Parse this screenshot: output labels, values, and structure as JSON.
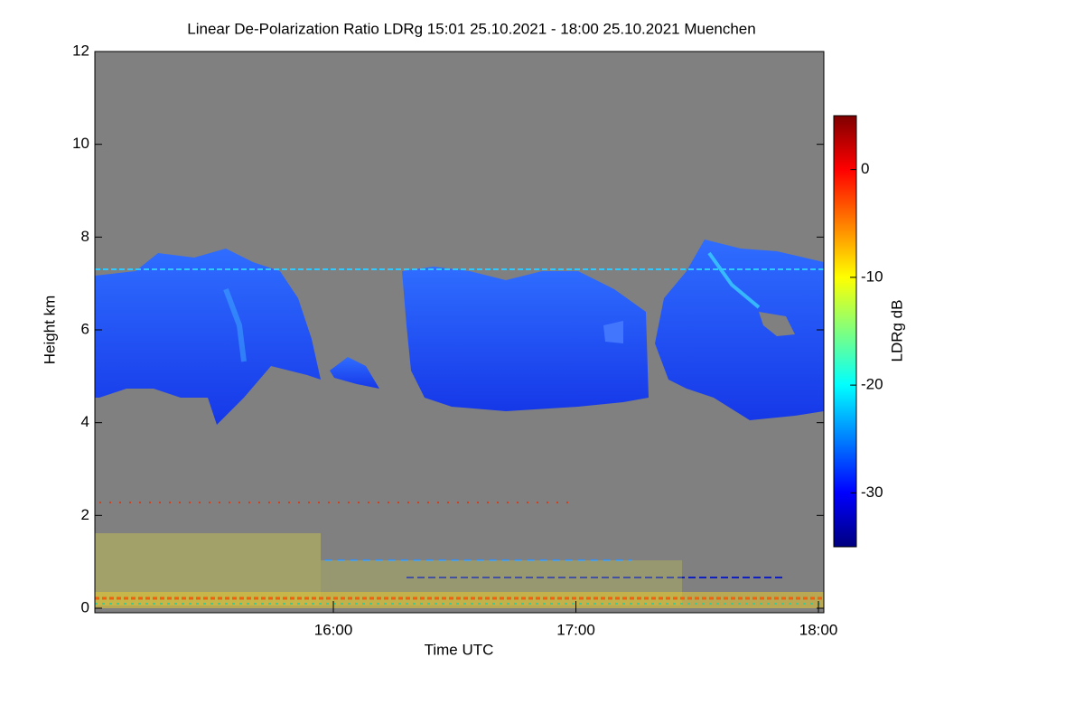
{
  "chart_data": {
    "type": "heatmap",
    "title": "Linear De-Polarization Ratio LDRg   15:01 25.10.2021 - 18:00 25.10.2021 Muenchen",
    "xlabel": "Time UTC",
    "ylabel": "Height km",
    "xlim": [
      15.0167,
      18.0222
    ],
    "xticks": [
      {
        "value": 16,
        "label": "16:00"
      },
      {
        "value": 17,
        "label": "17:00"
      },
      {
        "value": 18,
        "label": "18:00"
      }
    ],
    "ylim": [
      0,
      12
    ],
    "yticks": [
      0,
      2,
      4,
      6,
      8,
      10,
      12
    ],
    "colorbar_label": "LDRg dB",
    "clim": [
      -35,
      5
    ],
    "cticks": [
      -30,
      -20,
      -10,
      0
    ],
    "colormap": "jet",
    "background": "#808080"
  }
}
